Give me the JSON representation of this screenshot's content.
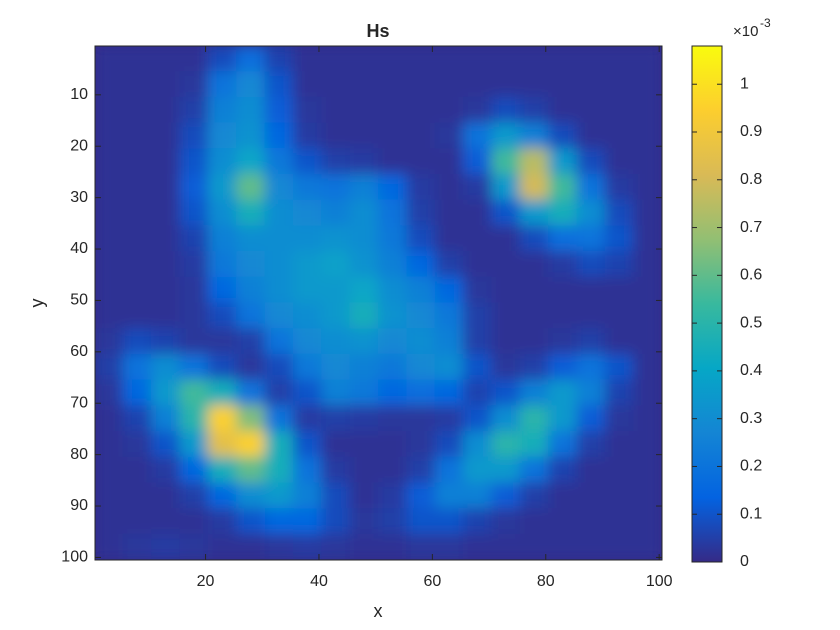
{
  "chart_data": {
    "type": "heatmap",
    "title": "Hs",
    "xlabel": "x",
    "ylabel": "y",
    "colormap": "parula",
    "x": [
      3,
      8,
      13,
      18,
      23,
      28,
      33,
      38,
      43,
      48,
      53,
      58,
      63,
      68,
      73,
      78,
      83,
      88,
      93,
      98
    ],
    "y": [
      3,
      8,
      13,
      18,
      23,
      28,
      33,
      38,
      43,
      48,
      53,
      58,
      63,
      68,
      73,
      78,
      83,
      88,
      93,
      98
    ],
    "z": [
      [
        0.02,
        0.02,
        0.02,
        0.02,
        0.08,
        0.18,
        0.06,
        0.02,
        0.02,
        0.02,
        0.02,
        0.02,
        0.02,
        0.02,
        0.02,
        0.02,
        0.02,
        0.02,
        0.02,
        0.02
      ],
      [
        0.02,
        0.02,
        0.02,
        0.03,
        0.2,
        0.28,
        0.1,
        0.02,
        0.02,
        0.02,
        0.02,
        0.02,
        0.02,
        0.02,
        0.02,
        0.02,
        0.02,
        0.02,
        0.02,
        0.02
      ],
      [
        0.02,
        0.02,
        0.02,
        0.05,
        0.25,
        0.3,
        0.12,
        0.03,
        0.02,
        0.02,
        0.02,
        0.02,
        0.02,
        0.03,
        0.08,
        0.05,
        0.02,
        0.02,
        0.02,
        0.02
      ],
      [
        0.02,
        0.02,
        0.02,
        0.08,
        0.28,
        0.32,
        0.15,
        0.04,
        0.02,
        0.02,
        0.02,
        0.02,
        0.03,
        0.2,
        0.35,
        0.25,
        0.08,
        0.02,
        0.02,
        0.02
      ],
      [
        0.02,
        0.02,
        0.02,
        0.1,
        0.3,
        0.4,
        0.22,
        0.1,
        0.05,
        0.04,
        0.02,
        0.02,
        0.02,
        0.12,
        0.55,
        0.75,
        0.35,
        0.08,
        0.02,
        0.02
      ],
      [
        0.02,
        0.02,
        0.02,
        0.12,
        0.35,
        0.6,
        0.28,
        0.22,
        0.2,
        0.25,
        0.15,
        0.04,
        0.02,
        0.04,
        0.35,
        0.8,
        0.55,
        0.2,
        0.04,
        0.02
      ],
      [
        0.02,
        0.02,
        0.02,
        0.1,
        0.3,
        0.45,
        0.3,
        0.28,
        0.25,
        0.3,
        0.2,
        0.05,
        0.02,
        0.02,
        0.1,
        0.35,
        0.45,
        0.3,
        0.08,
        0.02
      ],
      [
        0.02,
        0.02,
        0.02,
        0.06,
        0.25,
        0.3,
        0.3,
        0.3,
        0.32,
        0.3,
        0.22,
        0.08,
        0.02,
        0.02,
        0.02,
        0.08,
        0.18,
        0.2,
        0.1,
        0.02
      ],
      [
        0.02,
        0.02,
        0.02,
        0.04,
        0.22,
        0.28,
        0.3,
        0.35,
        0.38,
        0.32,
        0.25,
        0.15,
        0.05,
        0.02,
        0.02,
        0.02,
        0.04,
        0.08,
        0.06,
        0.02
      ],
      [
        0.02,
        0.02,
        0.02,
        0.03,
        0.15,
        0.25,
        0.3,
        0.35,
        0.35,
        0.4,
        0.3,
        0.25,
        0.15,
        0.03,
        0.02,
        0.02,
        0.02,
        0.02,
        0.02,
        0.02
      ],
      [
        0.02,
        0.02,
        0.02,
        0.03,
        0.08,
        0.2,
        0.28,
        0.3,
        0.35,
        0.45,
        0.32,
        0.28,
        0.22,
        0.05,
        0.02,
        0.02,
        0.02,
        0.02,
        0.02,
        0.02
      ],
      [
        0.03,
        0.08,
        0.06,
        0.03,
        0.03,
        0.05,
        0.2,
        0.28,
        0.3,
        0.32,
        0.28,
        0.3,
        0.25,
        0.05,
        0.02,
        0.02,
        0.03,
        0.05,
        0.02,
        0.02
      ],
      [
        0.05,
        0.2,
        0.3,
        0.2,
        0.08,
        0.03,
        0.08,
        0.22,
        0.28,
        0.25,
        0.22,
        0.28,
        0.3,
        0.1,
        0.03,
        0.05,
        0.12,
        0.2,
        0.1,
        0.02
      ],
      [
        0.03,
        0.15,
        0.35,
        0.55,
        0.45,
        0.2,
        0.05,
        0.1,
        0.25,
        0.22,
        0.15,
        0.18,
        0.15,
        0.06,
        0.1,
        0.25,
        0.35,
        0.25,
        0.06,
        0.02
      ],
      [
        0.02,
        0.06,
        0.25,
        0.5,
        0.95,
        0.65,
        0.2,
        0.04,
        0.05,
        0.04,
        0.03,
        0.03,
        0.04,
        0.1,
        0.3,
        0.5,
        0.35,
        0.12,
        0.03,
        0.02
      ],
      [
        0.02,
        0.03,
        0.1,
        0.35,
        0.85,
        0.95,
        0.45,
        0.1,
        0.02,
        0.02,
        0.02,
        0.03,
        0.08,
        0.3,
        0.5,
        0.45,
        0.2,
        0.05,
        0.02,
        0.02
      ],
      [
        0.02,
        0.02,
        0.04,
        0.15,
        0.45,
        0.6,
        0.45,
        0.2,
        0.04,
        0.02,
        0.02,
        0.05,
        0.2,
        0.35,
        0.35,
        0.2,
        0.06,
        0.02,
        0.02,
        0.02
      ],
      [
        0.02,
        0.02,
        0.02,
        0.05,
        0.15,
        0.3,
        0.35,
        0.25,
        0.08,
        0.02,
        0.04,
        0.12,
        0.25,
        0.25,
        0.12,
        0.05,
        0.02,
        0.02,
        0.02,
        0.02
      ],
      [
        0.02,
        0.02,
        0.02,
        0.02,
        0.04,
        0.1,
        0.15,
        0.15,
        0.08,
        0.03,
        0.05,
        0.1,
        0.1,
        0.06,
        0.03,
        0.02,
        0.02,
        0.02,
        0.02,
        0.02
      ],
      [
        0.02,
        0.03,
        0.04,
        0.03,
        0.02,
        0.02,
        0.03,
        0.04,
        0.03,
        0.02,
        0.02,
        0.03,
        0.03,
        0.02,
        0.02,
        0.02,
        0.02,
        0.02,
        0.02,
        0.02
      ]
    ],
    "xlim": [
      0.5,
      100.5
    ],
    "ylim": [
      0.5,
      100.5
    ],
    "xticks": [
      20,
      40,
      60,
      80,
      100
    ],
    "yticks": [
      10,
      20,
      30,
      40,
      50,
      60,
      70,
      80,
      90,
      100
    ],
    "clim": [
      0,
      1.08
    ],
    "cticks": [
      0,
      0.1,
      0.2,
      0.3,
      0.4,
      0.5,
      0.6,
      0.7,
      0.8,
      0.9,
      1
    ],
    "colorbar_scale": {
      "base": "×10",
      "exponent": "-3"
    }
  }
}
